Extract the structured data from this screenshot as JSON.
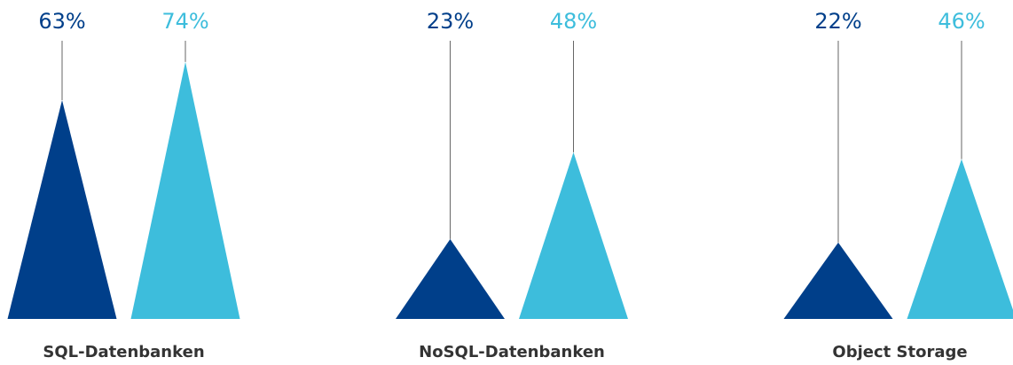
{
  "chart_data": {
    "type": "bar",
    "categories": [
      "SQL-Datenbanken",
      "NoSQL-Datenbanken",
      "Object Storage"
    ],
    "series": [
      {
        "color": "#003f8a",
        "values": [
          63,
          23,
          22
        ],
        "value_labels": [
          "63%",
          "23%",
          "22%"
        ]
      },
      {
        "color": "#3dbddc",
        "values": [
          74,
          48,
          46
        ],
        "value_labels": [
          "74%",
          "48%",
          "46%"
        ]
      }
    ]
  }
}
